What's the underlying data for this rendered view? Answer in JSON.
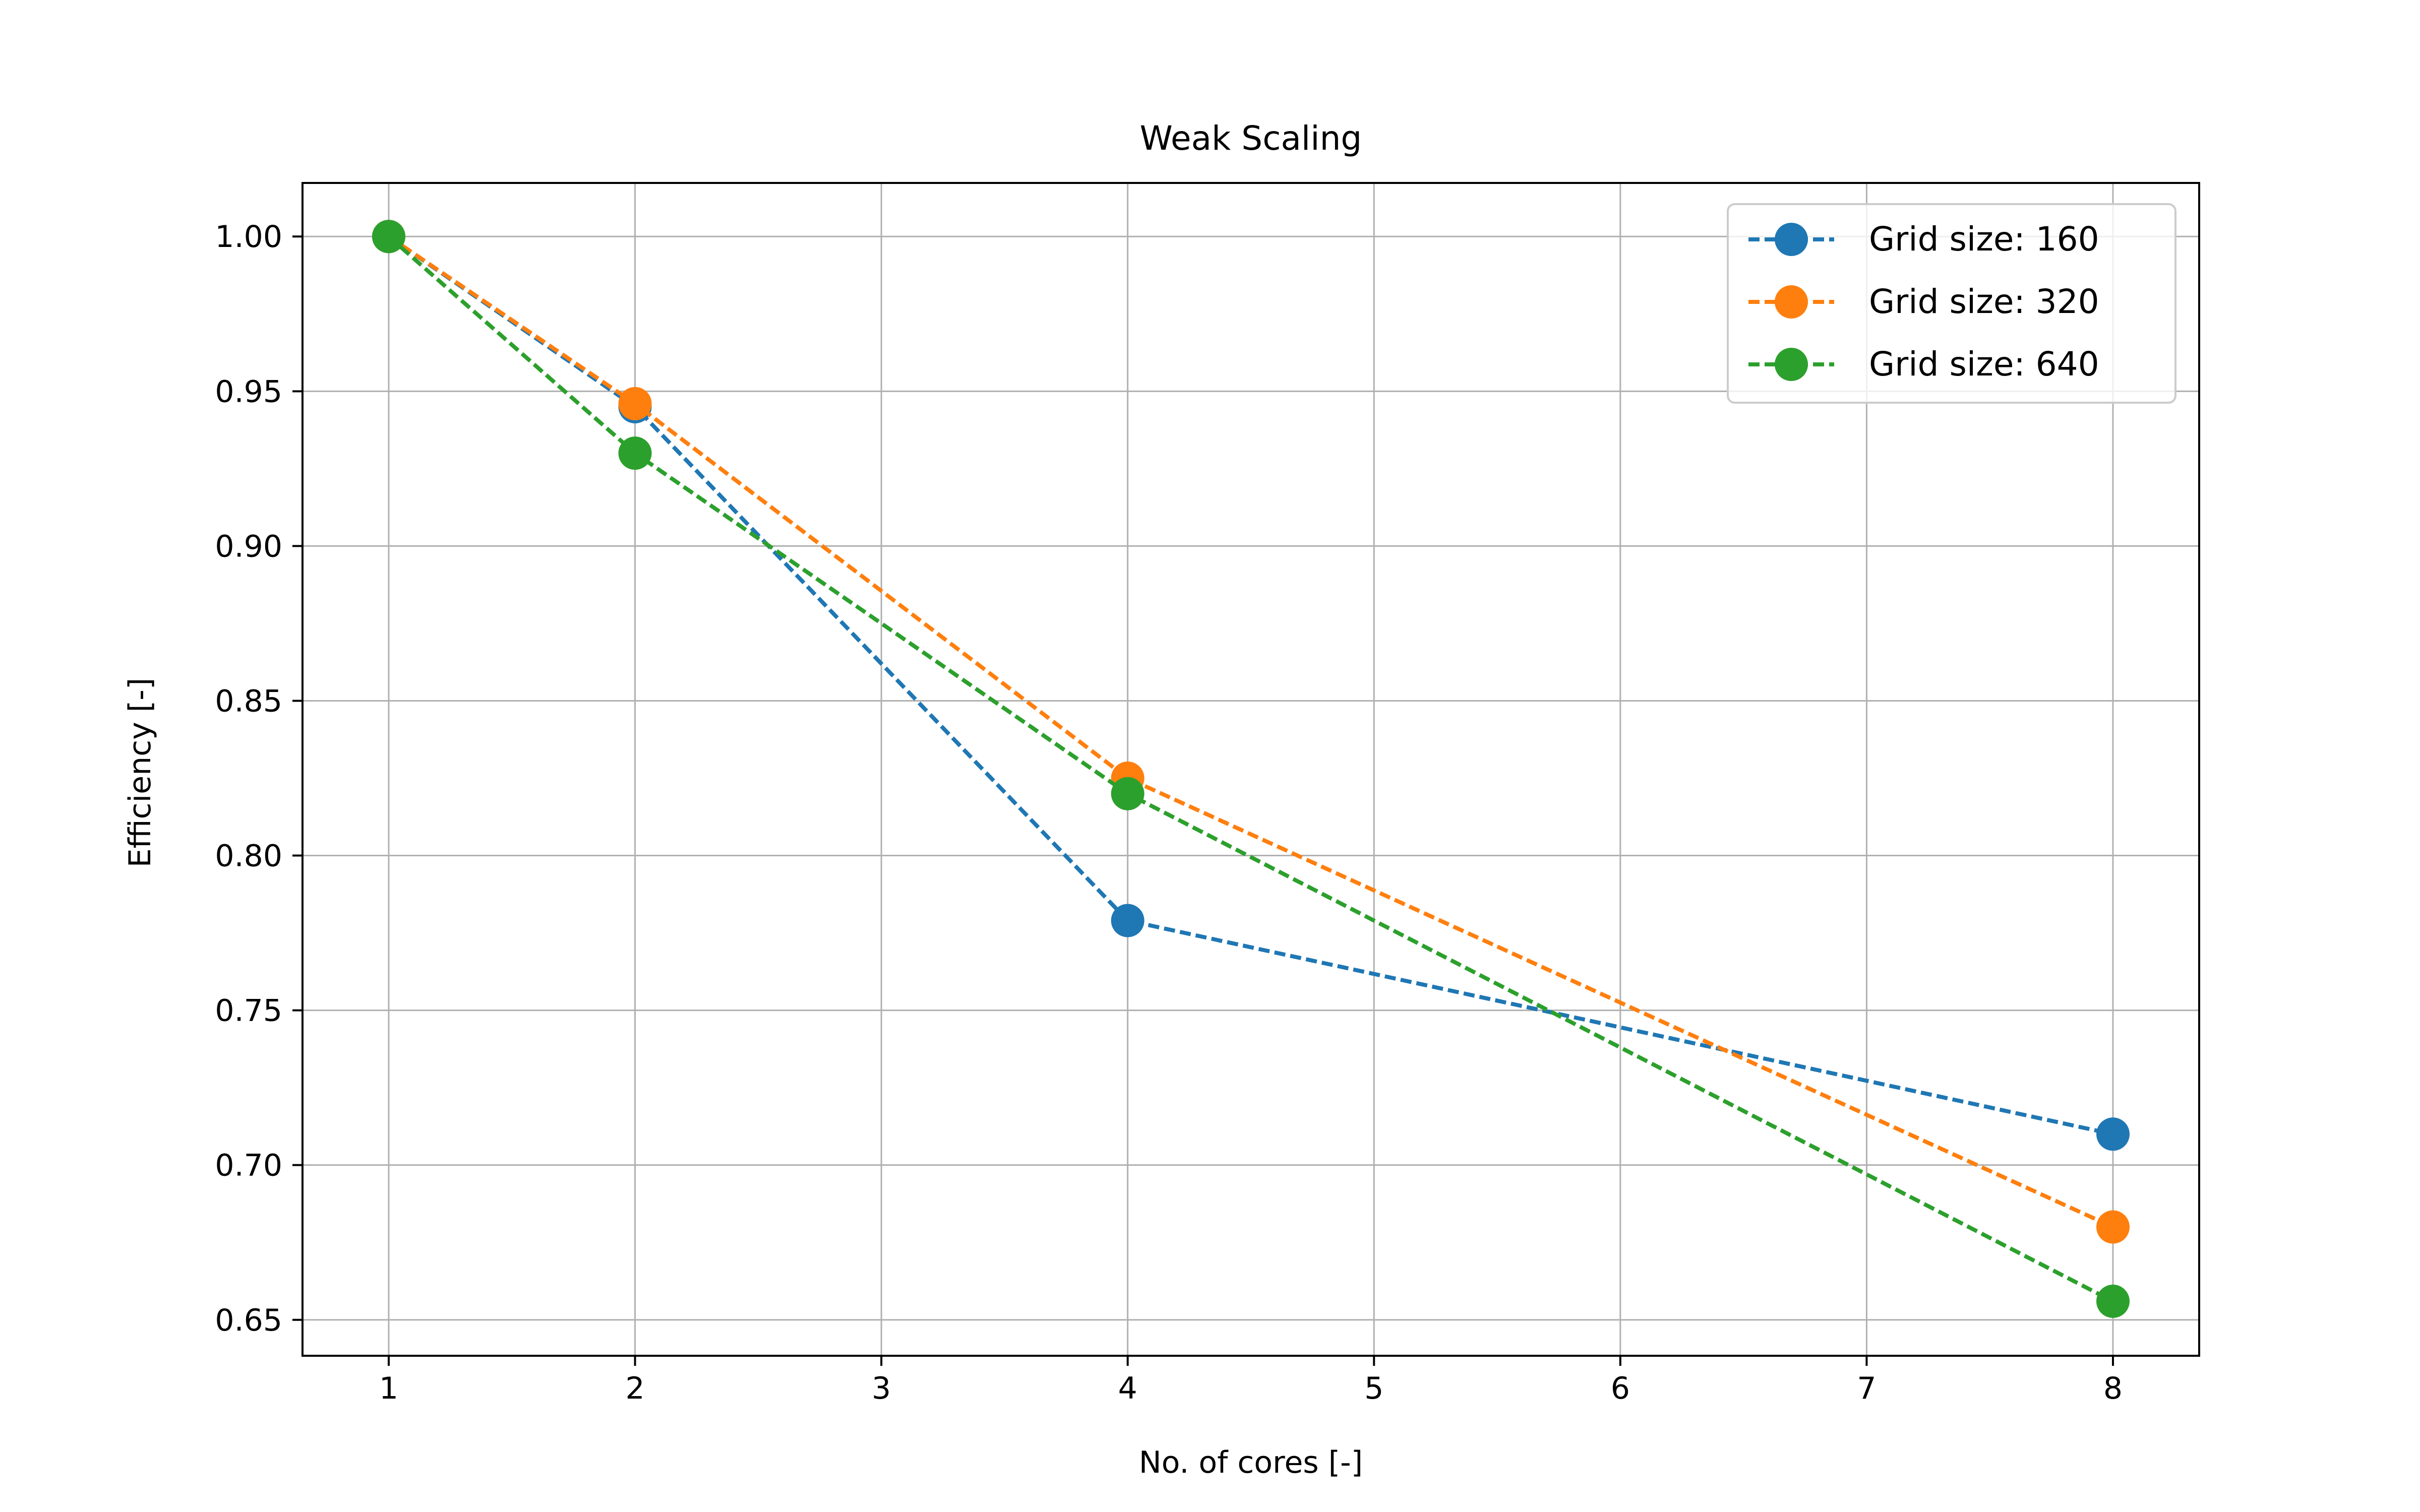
{
  "chart_data": {
    "type": "line",
    "title": "Weak Scaling",
    "xlabel": "No. of cores [-]",
    "ylabel": "Efficiency [-]",
    "xlim": [
      0.65,
      8.35
    ],
    "ylim": [
      0.6384,
      1.0173
    ],
    "xticks": [
      1,
      2,
      3,
      4,
      5,
      6,
      7,
      8
    ],
    "xtick_labels": [
      "1",
      "2",
      "3",
      "4",
      "5",
      "6",
      "7",
      "8"
    ],
    "yticks": [
      0.65,
      0.7,
      0.75,
      0.8,
      0.85,
      0.9,
      0.95,
      1.0
    ],
    "ytick_labels": [
      "0.65",
      "0.70",
      "0.75",
      "0.80",
      "0.85",
      "0.90",
      "0.95",
      "1.00"
    ],
    "grid": true,
    "legend_position": "top-right",
    "line_style": "dashed",
    "marker": "circle",
    "x": [
      1,
      2,
      4,
      8
    ],
    "series": [
      {
        "name": "Grid size: 160",
        "color": "#1f77b4",
        "values": [
          1.0,
          0.945,
          0.779,
          0.71
        ]
      },
      {
        "name": "Grid size: 320",
        "color": "#ff7f0e",
        "values": [
          1.0,
          0.946,
          0.825,
          0.68
        ]
      },
      {
        "name": "Grid size: 640",
        "color": "#2ca02c",
        "values": [
          1.0,
          0.93,
          0.82,
          0.656
        ]
      }
    ]
  }
}
